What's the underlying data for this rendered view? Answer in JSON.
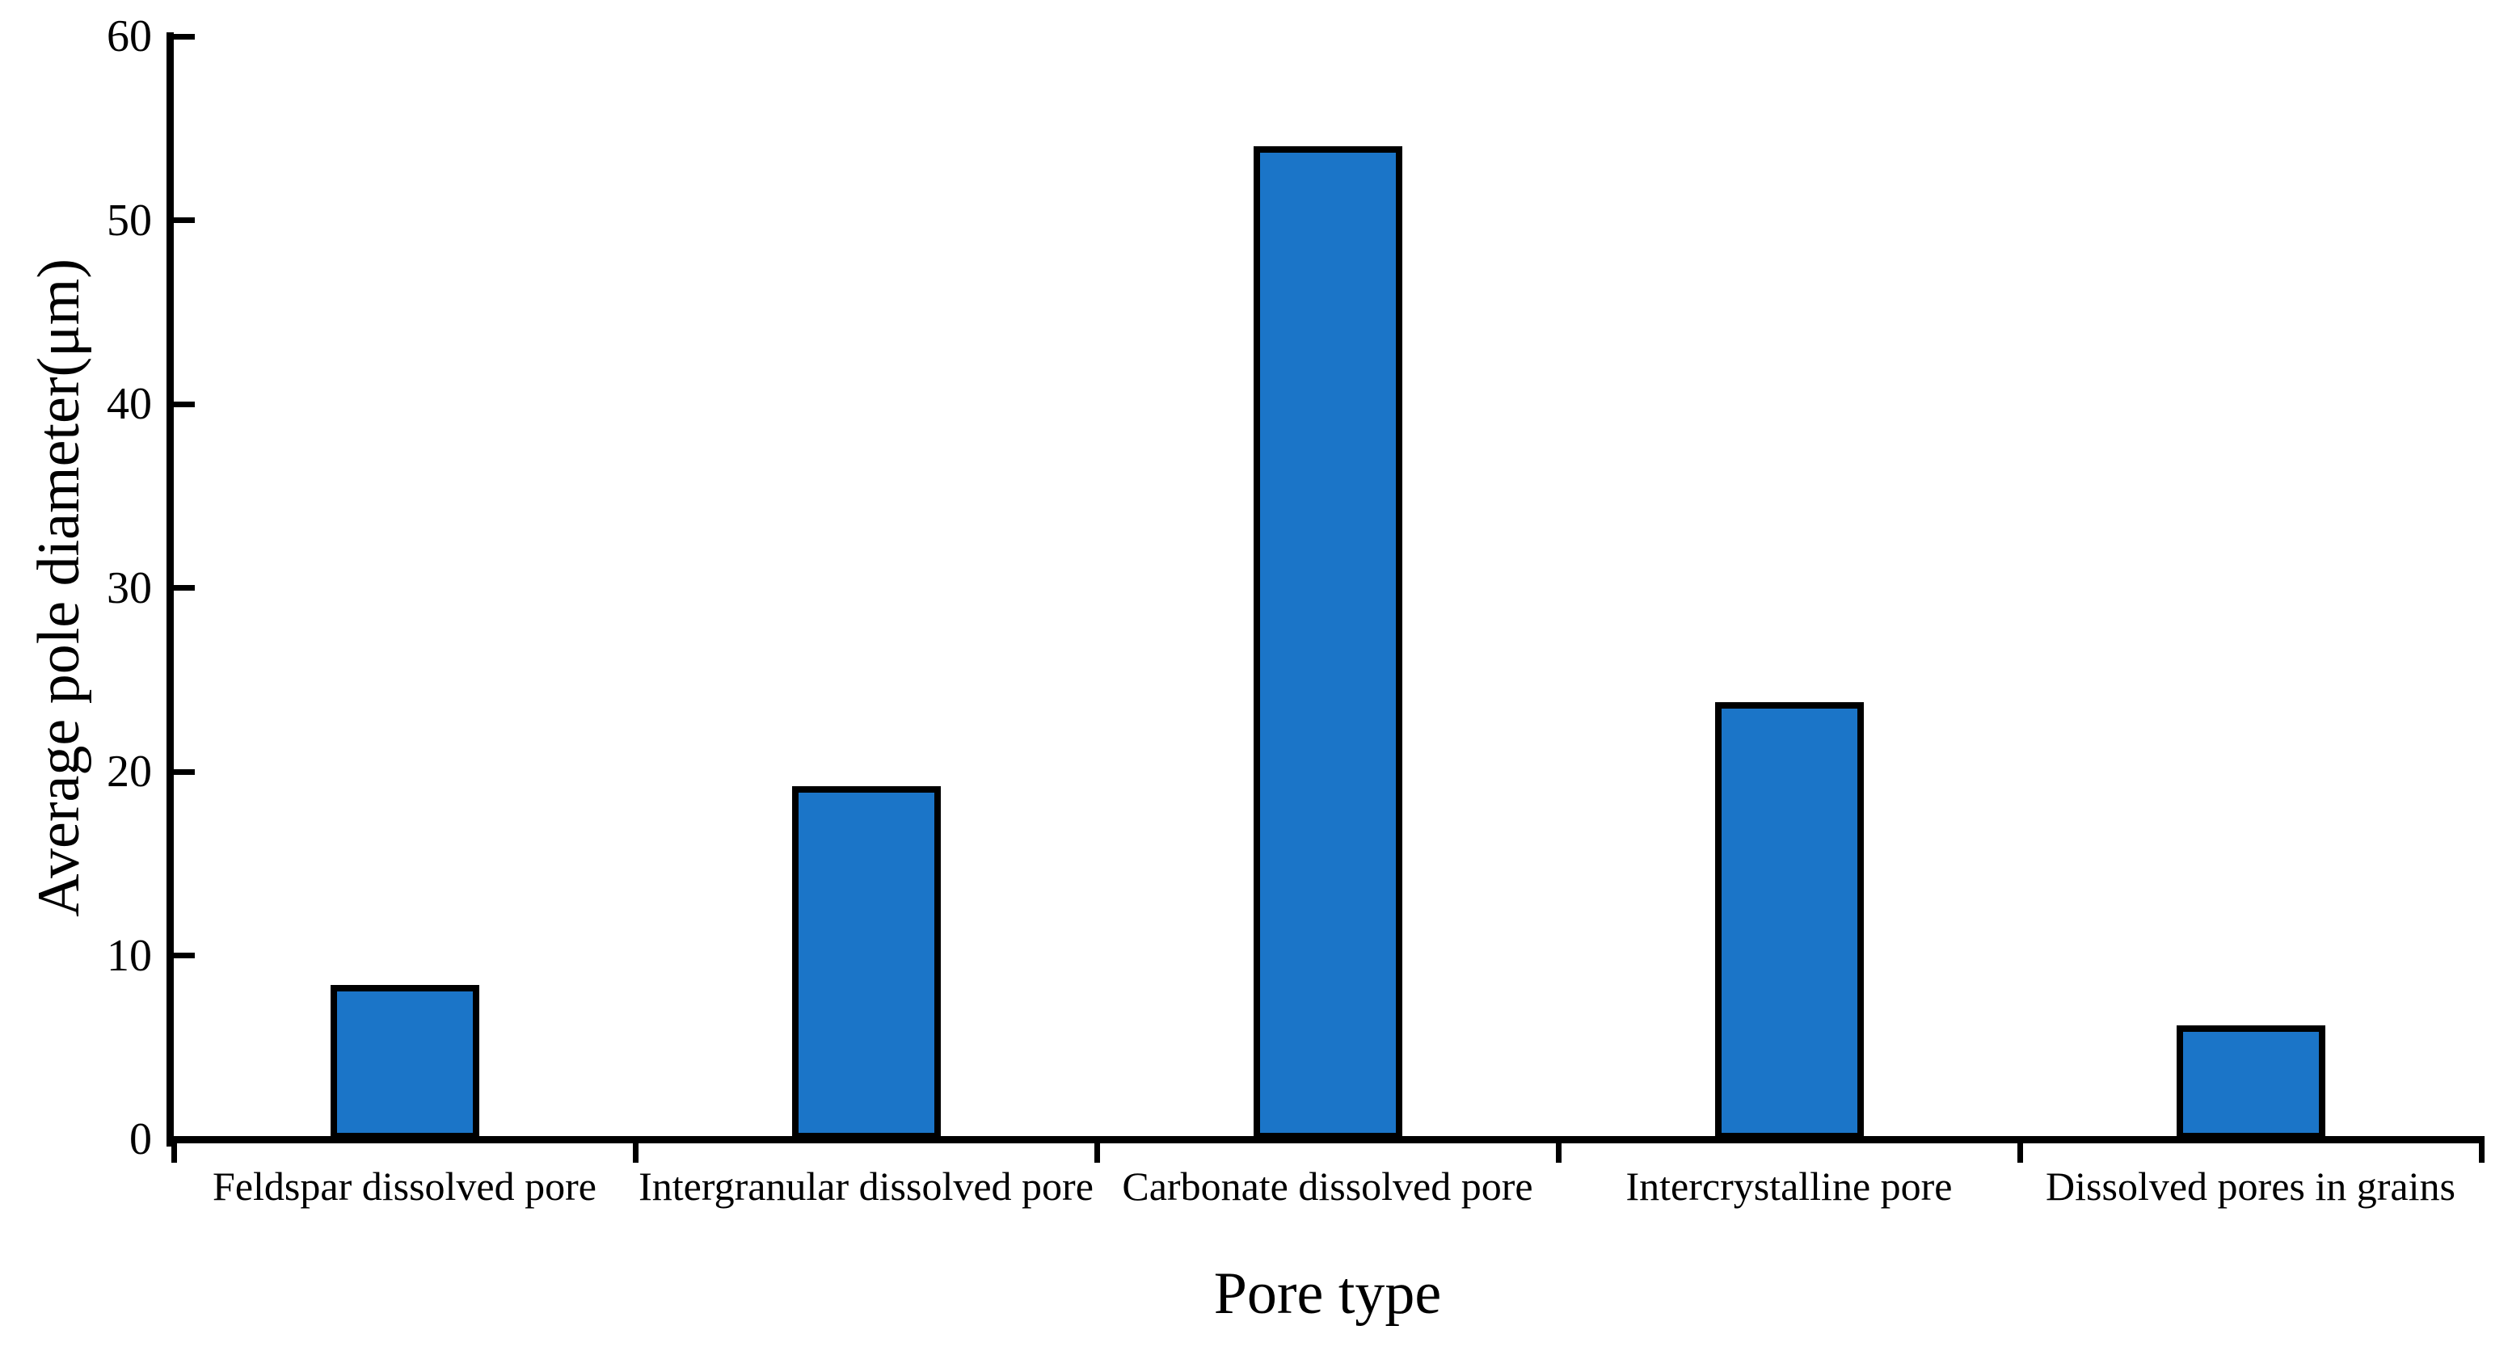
{
  "chart_data": {
    "type": "bar",
    "title": "",
    "xlabel": "Pore type",
    "ylabel": "Average pole diameter(μm)",
    "categories": [
      "Feldspar dissolved pore",
      "Intergranular dissolved pore",
      "Carbonate dissolved pore",
      "Intercrystalline pore",
      "Dissolved pores in grains"
    ],
    "values": [
      8.4,
      19.2,
      54,
      23.8,
      6.2
    ],
    "ylim": [
      0,
      60
    ],
    "yticks": [
      0,
      10,
      20,
      30,
      40,
      50,
      60
    ],
    "grid": false,
    "legend_position": "none",
    "bar_color": "#1B75C8",
    "bar_border_color": "#000000",
    "axis_color": "#000000",
    "text_color": "#000000",
    "background_color": "#FFFFFF"
  }
}
